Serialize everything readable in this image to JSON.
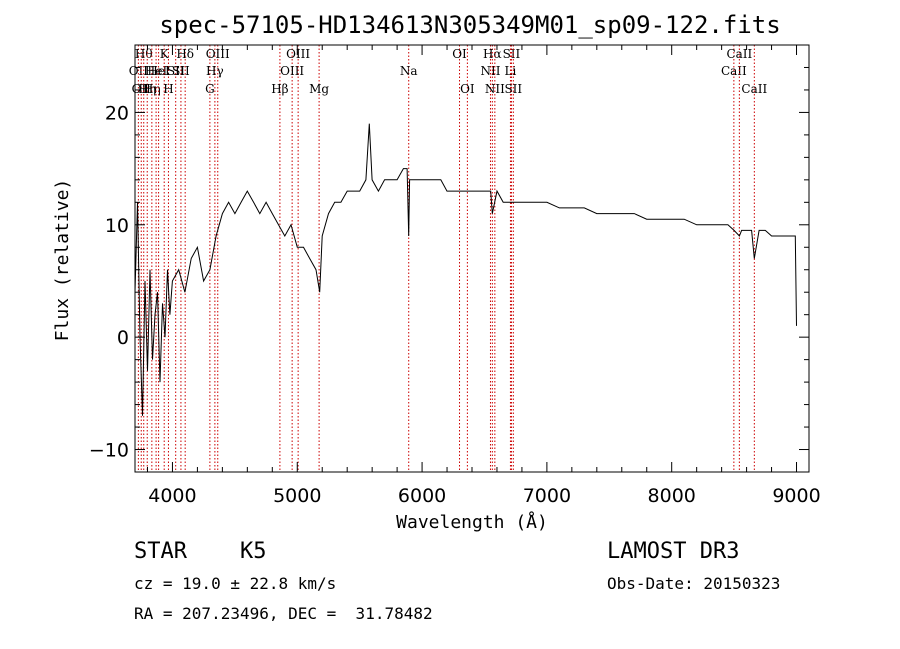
{
  "chart_data": {
    "type": "line",
    "title": "spec-57105-HD134613N305349M01_sp09-122.fits",
    "xlabel": "Wavelength (Å)",
    "ylabel": "Flux (relative)",
    "xlim": [
      3700,
      9100
    ],
    "ylim": [
      -12,
      26
    ],
    "xticks": [
      4000,
      5000,
      6000,
      7000,
      8000,
      9000
    ],
    "yticks": [
      -10,
      0,
      10,
      20
    ],
    "grid": false,
    "series": [
      {
        "x": [
          3700,
          3720,
          3740,
          3760,
          3780,
          3800,
          3820,
          3840,
          3860,
          3880,
          3900,
          3920,
          3940,
          3960,
          3980,
          4000,
          4050,
          4100,
          4150,
          4200,
          4250,
          4300,
          4350,
          4400,
          4450,
          4500,
          4550,
          4600,
          4650,
          4700,
          4750,
          4800,
          4850,
          4900,
          4950,
          5000,
          5050,
          5100,
          5150,
          5180,
          5200,
          5250,
          5300,
          5350,
          5400,
          5450,
          5500,
          5550,
          5577,
          5600,
          5650,
          5700,
          5750,
          5800,
          5850,
          5880,
          5893,
          5900,
          5950,
          6000,
          6050,
          6100,
          6150,
          6200,
          6250,
          6300,
          6350,
          6400,
          6450,
          6500,
          6550,
          6563,
          6600,
          6650,
          6700,
          6750,
          6800,
          6900,
          7000,
          7100,
          7200,
          7300,
          7400,
          7500,
          7600,
          7700,
          7800,
          7900,
          8000,
          8100,
          8200,
          8300,
          8400,
          8450,
          8500,
          8542,
          8560,
          8600,
          8640,
          8662,
          8700,
          8750,
          8800,
          8850,
          8900,
          8950,
          8990,
          9000
        ],
        "y": [
          4,
          12,
          0,
          -7,
          5,
          -3,
          6,
          -2,
          2,
          4,
          -4,
          3,
          0,
          6,
          2,
          5,
          6,
          4,
          7,
          8,
          5,
          6,
          9,
          11,
          12,
          11,
          12,
          13,
          12,
          11,
          12,
          11,
          10,
          9,
          10,
          8,
          8,
          7,
          6,
          4,
          9,
          11,
          12,
          12,
          13,
          13,
          13,
          14,
          19,
          14,
          13,
          14,
          14,
          14,
          15,
          15,
          9,
          14,
          14,
          14,
          14,
          14,
          14,
          13,
          13,
          13,
          13,
          13,
          13,
          13,
          13,
          11,
          13,
          12,
          12,
          12,
          12,
          12,
          12,
          11.5,
          11.5,
          11.5,
          11,
          11,
          11,
          11,
          10.5,
          10.5,
          10.5,
          10.5,
          10,
          10,
          10,
          10,
          9.5,
          9,
          9.5,
          9.5,
          9.5,
          7,
          9.5,
          9.5,
          9,
          9,
          9,
          9,
          9,
          1
        ]
      }
    ],
    "line_markers": [
      {
        "x": 3727,
        "label": "OII",
        "row": 2
      },
      {
        "x": 3750,
        "label": "OII",
        "row": 3
      },
      {
        "x": 3770,
        "label": "Hθ",
        "row": 1
      },
      {
        "x": 3798,
        "label": "Hη",
        "row": 3
      },
      {
        "x": 3835,
        "label": "Hη",
        "row": 3
      },
      {
        "x": 3869,
        "label": "HeI",
        "row": 2
      },
      {
        "x": 3889,
        "label": "HeI",
        "row": 2
      },
      {
        "x": 3934,
        "label": "K",
        "row": 1
      },
      {
        "x": 3968,
        "label": "H",
        "row": 3
      },
      {
        "x": 4026,
        "label": "SII",
        "row": 2
      },
      {
        "x": 4068,
        "label": "SII",
        "row": 2
      },
      {
        "x": 4102,
        "label": "Hδ",
        "row": 1
      },
      {
        "x": 4300,
        "label": "G",
        "row": 3
      },
      {
        "x": 4340,
        "label": "Hγ",
        "row": 2
      },
      {
        "x": 4363,
        "label": "OIII",
        "row": 1
      },
      {
        "x": 4861,
        "label": "Hβ",
        "row": 3
      },
      {
        "x": 4959,
        "label": "OIII",
        "row": 2
      },
      {
        "x": 5007,
        "label": "OIII",
        "row": 1
      },
      {
        "x": 5175,
        "label": "Mg",
        "row": 3
      },
      {
        "x": 5893,
        "label": "Na",
        "row": 2
      },
      {
        "x": 6300,
        "label": "OI",
        "row": 1
      },
      {
        "x": 6363,
        "label": "OI",
        "row": 3
      },
      {
        "x": 6548,
        "label": "NII",
        "row": 2
      },
      {
        "x": 6563,
        "label": "Hα",
        "row": 1
      },
      {
        "x": 6583,
        "label": "NII",
        "row": 3
      },
      {
        "x": 6708,
        "label": "Li",
        "row": 2
      },
      {
        "x": 6716,
        "label": "SII",
        "row": 1
      },
      {
        "x": 6731,
        "label": "SII",
        "row": 3
      },
      {
        "x": 8498,
        "label": "CaII",
        "row": 2
      },
      {
        "x": 8542,
        "label": "CaII",
        "row": 1
      },
      {
        "x": 8662,
        "label": "CaII",
        "row": 3
      }
    ],
    "marker_color": "#cc0000"
  },
  "info": {
    "class": "STAR",
    "subclass": "K5",
    "survey": "LAMOST DR3",
    "cz": "cz = 19.0 ± 22.8 km/s",
    "obs_date": "Obs-Date: 20150323",
    "radec": "RA = 207.23496, DEC =  31.78482"
  }
}
